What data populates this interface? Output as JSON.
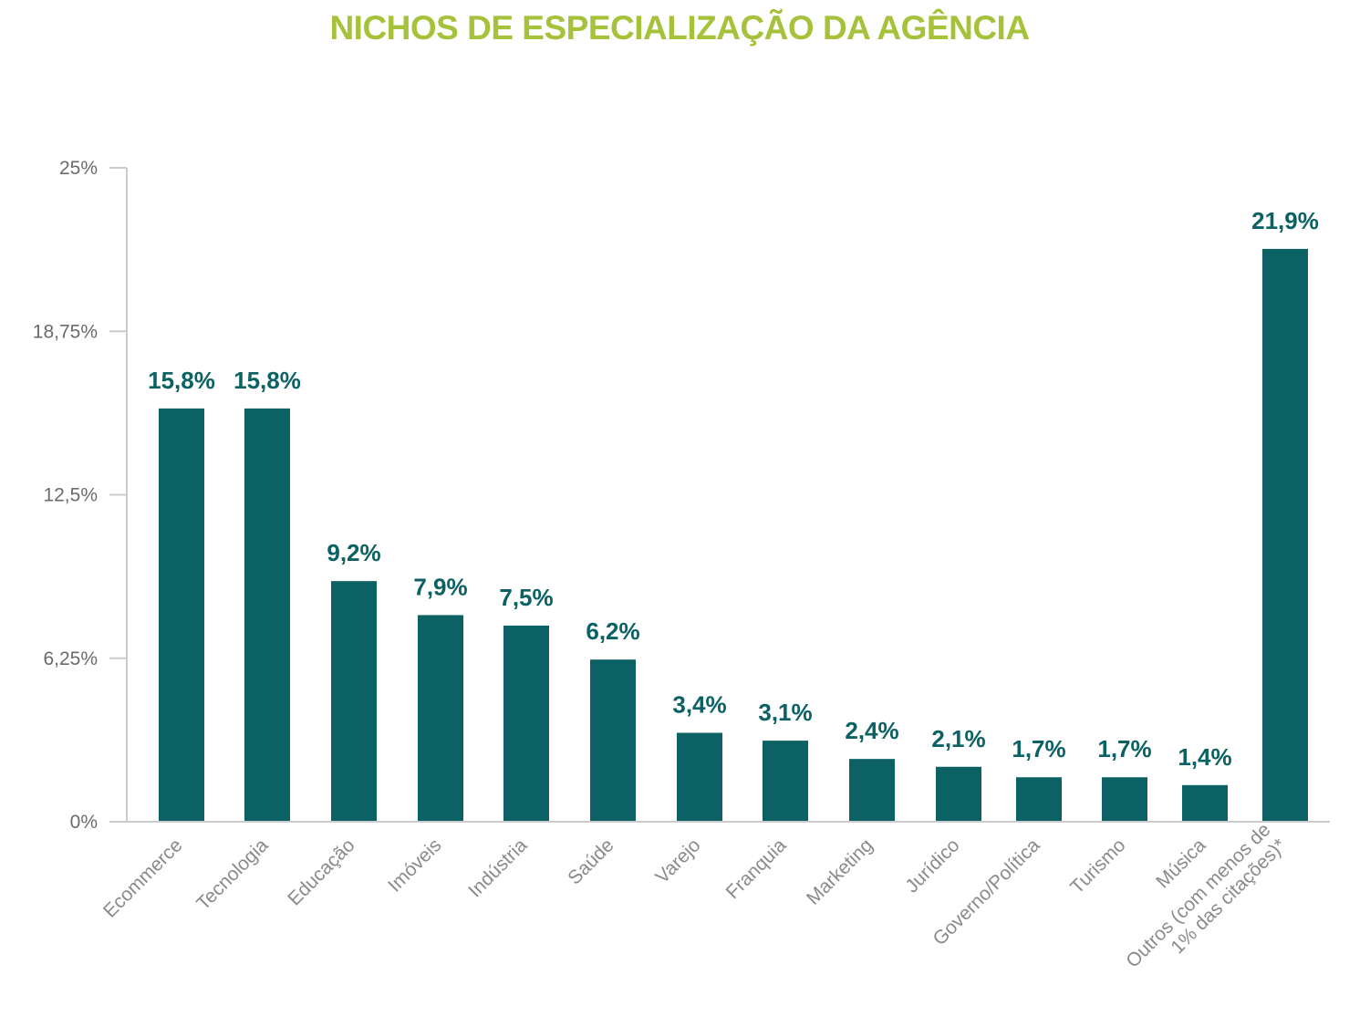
{
  "chart_data": {
    "type": "bar",
    "title": "NICHOS DE ESPECIALIZAÇÃO DA AGÊNCIA",
    "categories": [
      [
        "Ecommerce"
      ],
      [
        "Tecnologia"
      ],
      [
        "Educação"
      ],
      [
        "Imóveis"
      ],
      [
        "Indústria"
      ],
      [
        "Saúde"
      ],
      [
        "Varejo"
      ],
      [
        "Franquia"
      ],
      [
        "Marketing"
      ],
      [
        "Jurídico"
      ],
      [
        "Governo/Política"
      ],
      [
        "Turismo"
      ],
      [
        "Música"
      ],
      [
        "Outros (com menos de",
        "1% das citações)*"
      ]
    ],
    "values": [
      15.8,
      15.8,
      9.2,
      7.9,
      7.5,
      6.2,
      3.4,
      3.1,
      2.4,
      2.1,
      1.7,
      1.7,
      1.4,
      21.9
    ],
    "value_labels": [
      "15,8%",
      "15,8%",
      "9,2%",
      "7,9%",
      "7,5%",
      "6,2%",
      "3,4%",
      "3,1%",
      "2,4%",
      "2,1%",
      "1,7%",
      "1,7%",
      "1,4%",
      "21,9%"
    ],
    "ylim": [
      0,
      25
    ],
    "y_ticks": [
      0,
      6.25,
      12.5,
      18.75,
      25
    ],
    "y_tick_labels": [
      "0%",
      "6,25%",
      "12,5%",
      "18,75%",
      "25%"
    ],
    "xlabel": "",
    "ylabel": "",
    "grid": false,
    "legend": "none"
  },
  "colors": {
    "title": "#a6c23a",
    "bar": "#0b6163",
    "data_label": "#0b6163",
    "axis": "#cccccc"
  }
}
